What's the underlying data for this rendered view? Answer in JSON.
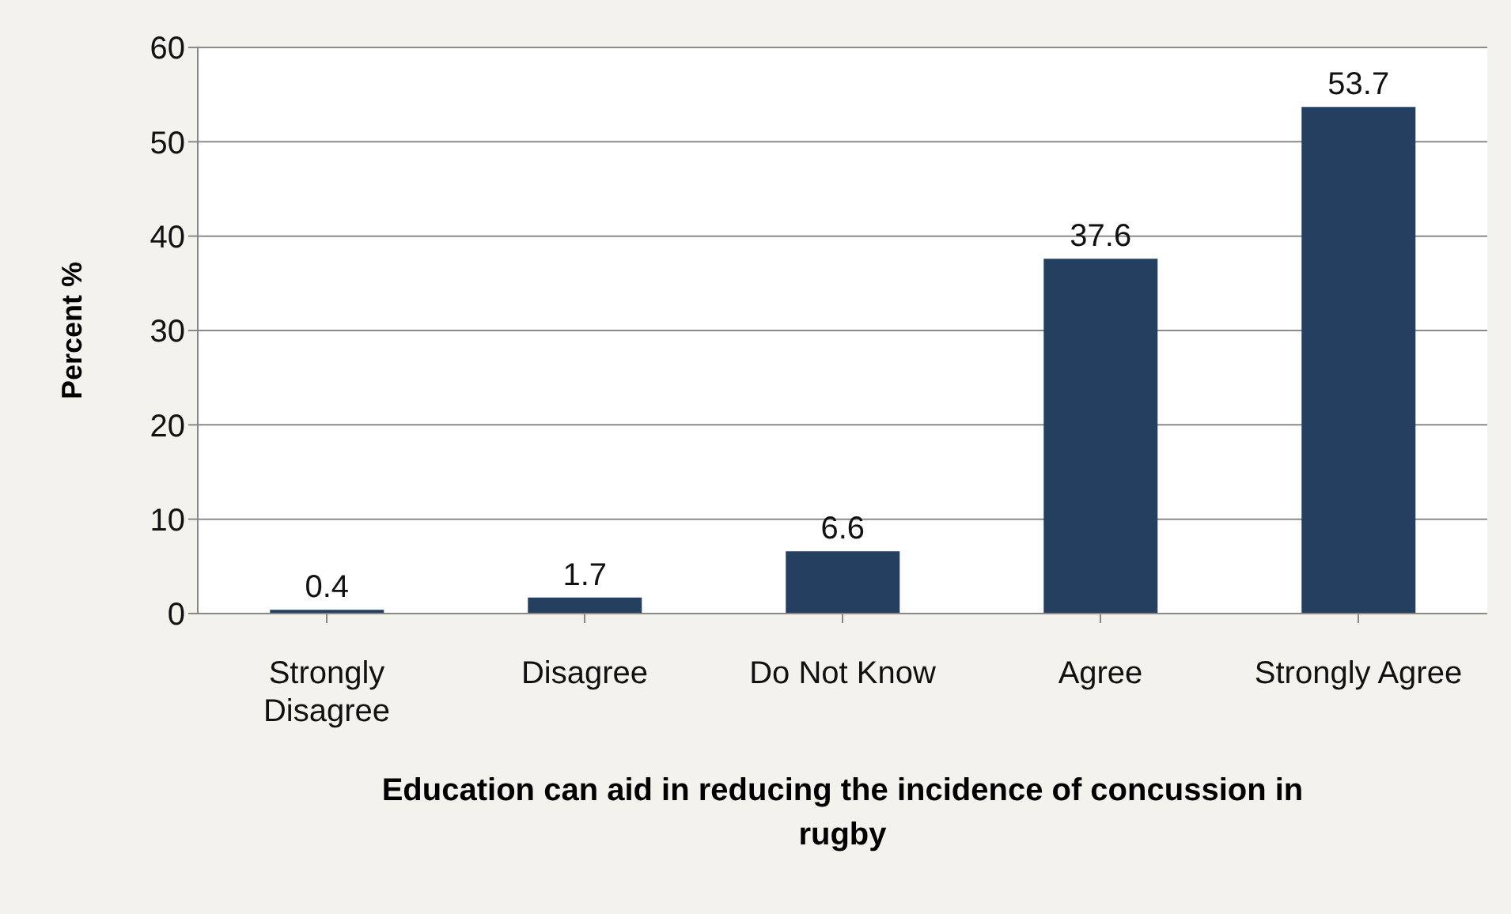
{
  "chart_data": {
    "type": "bar",
    "categories": [
      "Strongly Disagree",
      "Disagree",
      "Do Not Know",
      "Agree",
      "Strongly Agree"
    ],
    "values": [
      0.4,
      1.7,
      6.6,
      37.6,
      53.7
    ],
    "color": "#243f60",
    "xlabel": "Education can aid in reducing the incidence of concussion in rugby",
    "ylabel": "Percent %",
    "ylim": [
      0,
      60
    ],
    "yticks": [
      0,
      10,
      20,
      30,
      40,
      50,
      60
    ],
    "grid": "y",
    "data_labels": true
  }
}
